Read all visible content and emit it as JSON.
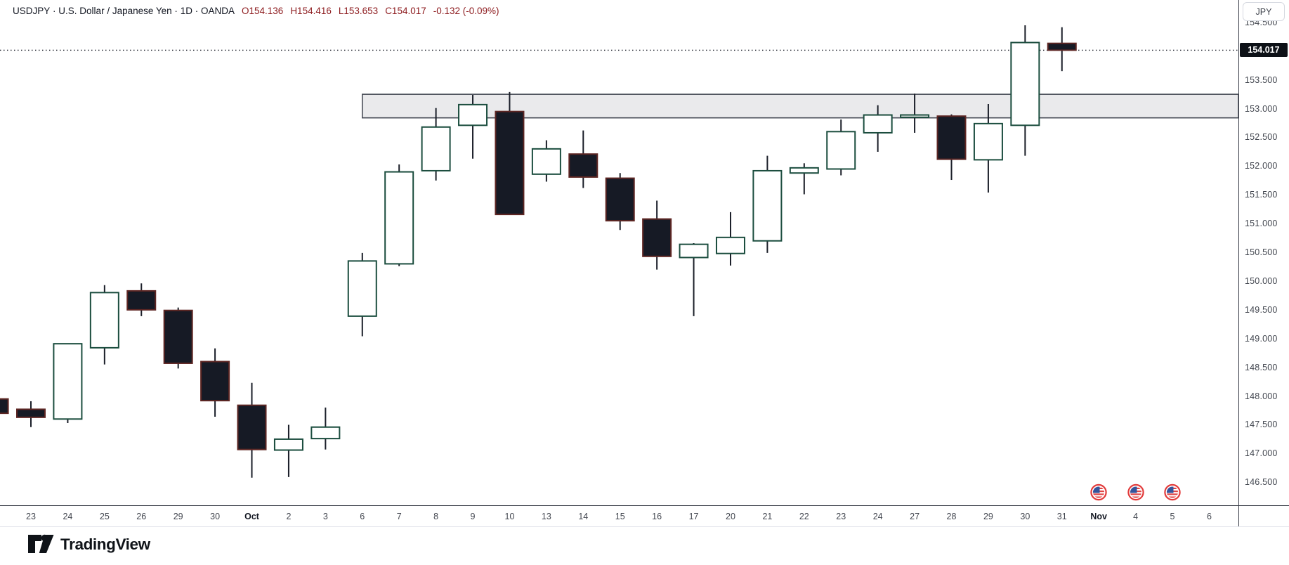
{
  "header": {
    "symbol": "USDJPY",
    "description": "U.S. Dollar / Japanese Yen",
    "interval": "1D",
    "exchange": "OANDA",
    "sep": "·",
    "open": "O154.136",
    "high": "H154.416",
    "low": "L153.653",
    "close": "C154.017",
    "change": "-0.132 (-0.09%)"
  },
  "price_axis": {
    "currency_label": "JPY",
    "last_price_tag": "154.017",
    "labels": [
      "154.500",
      "153.500",
      "153.000",
      "152.500",
      "152.000",
      "151.500",
      "151.000",
      "150.500",
      "150.000",
      "149.500",
      "149.000",
      "148.500",
      "148.000",
      "147.500",
      "147.000",
      "146.500"
    ]
  },
  "time_axis": {
    "labels": [
      "23",
      "24",
      "25",
      "26",
      "29",
      "30",
      "Oct",
      "2",
      "3",
      "6",
      "7",
      "8",
      "9",
      "10",
      "13",
      "14",
      "15",
      "16",
      "17",
      "20",
      "21",
      "22",
      "23",
      "24",
      "27",
      "28",
      "29",
      "30",
      "31",
      "Nov",
      "4",
      "5",
      "6"
    ],
    "month_indices": [
      6,
      29
    ],
    "event_icon_indices": [
      29,
      30,
      31
    ]
  },
  "chart_data": {
    "type": "candlestick",
    "title": "USDJPY 1D OANDA",
    "ylim": [
      146.1,
      154.89
    ],
    "grid": "off",
    "last_price_line": 154.017,
    "partial_candle_left_edge": {
      "open": 147.95,
      "high": 147.95,
      "low": 147.7,
      "close": 147.7,
      "dir": "down"
    },
    "candles": [
      {
        "date": "Sep 23",
        "open": 147.77,
        "high": 147.91,
        "low": 147.46,
        "close": 147.63
      },
      {
        "date": "Sep 24",
        "open": 147.6,
        "high": 148.91,
        "low": 147.53,
        "close": 148.91
      },
      {
        "date": "Sep 25",
        "open": 148.84,
        "high": 149.93,
        "low": 148.55,
        "close": 149.8
      },
      {
        "date": "Sep 26",
        "open": 149.83,
        "high": 149.96,
        "low": 149.39,
        "close": 149.5
      },
      {
        "date": "Sep 29",
        "open": 149.49,
        "high": 149.54,
        "low": 148.48,
        "close": 148.57
      },
      {
        "date": "Sep 30",
        "open": 148.6,
        "high": 148.83,
        "low": 147.64,
        "close": 147.92
      },
      {
        "date": "Oct 1",
        "open": 147.84,
        "high": 148.23,
        "low": 146.58,
        "close": 147.07
      },
      {
        "date": "Oct 2",
        "open": 147.06,
        "high": 147.5,
        "low": 146.59,
        "close": 147.25
      },
      {
        "date": "Oct 3",
        "open": 147.26,
        "high": 147.8,
        "low": 147.07,
        "close": 147.46
      },
      {
        "date": "Oct 6",
        "open": 149.39,
        "high": 150.49,
        "low": 149.04,
        "close": 150.35
      },
      {
        "date": "Oct 7",
        "open": 150.3,
        "high": 152.03,
        "low": 150.26,
        "close": 151.9
      },
      {
        "date": "Oct 8",
        "open": 151.92,
        "high": 153.01,
        "low": 151.75,
        "close": 152.68
      },
      {
        "date": "Oct 9",
        "open": 152.71,
        "high": 153.24,
        "low": 152.13,
        "close": 153.07
      },
      {
        "date": "Oct 10",
        "open": 152.95,
        "high": 153.29,
        "low": 151.16,
        "close": 151.16
      },
      {
        "date": "Oct 13",
        "open": 151.86,
        "high": 152.45,
        "low": 151.73,
        "close": 152.3
      },
      {
        "date": "Oct 14",
        "open": 152.21,
        "high": 152.62,
        "low": 151.62,
        "close": 151.81
      },
      {
        "date": "Oct 15",
        "open": 151.79,
        "high": 151.88,
        "low": 150.89,
        "close": 151.05
      },
      {
        "date": "Oct 16",
        "open": 151.08,
        "high": 151.4,
        "low": 150.2,
        "close": 150.43
      },
      {
        "date": "Oct 17",
        "open": 150.41,
        "high": 150.66,
        "low": 149.39,
        "close": 150.64
      },
      {
        "date": "Oct 20",
        "open": 150.48,
        "high": 151.2,
        "low": 150.27,
        "close": 150.76
      },
      {
        "date": "Oct 21",
        "open": 150.7,
        "high": 152.18,
        "low": 150.49,
        "close": 151.92
      },
      {
        "date": "Oct 22",
        "open": 151.88,
        "high": 152.05,
        "low": 151.51,
        "close": 151.97
      },
      {
        "date": "Oct 23",
        "open": 151.95,
        "high": 152.81,
        "low": 151.84,
        "close": 152.6
      },
      {
        "date": "Oct 24",
        "open": 152.58,
        "high": 153.06,
        "low": 152.25,
        "close": 152.89
      },
      {
        "date": "Oct 27",
        "open": 152.85,
        "high": 153.26,
        "low": 152.58,
        "close": 152.89
      },
      {
        "date": "Oct 28",
        "open": 152.87,
        "high": 152.9,
        "low": 151.76,
        "close": 152.12
      },
      {
        "date": "Oct 29",
        "open": 152.11,
        "high": 153.08,
        "low": 151.54,
        "close": 152.74
      },
      {
        "date": "Oct 30",
        "open": 152.71,
        "high": 154.45,
        "low": 152.18,
        "close": 154.15
      },
      {
        "date": "Oct 31",
        "open": 154.136,
        "high": 154.416,
        "low": 153.653,
        "close": 154.017
      }
    ],
    "zone": {
      "price_top": 153.25,
      "price_bottom": 152.84,
      "start_index": 9,
      "extends_to_right": true
    }
  },
  "colors": {
    "up_fill": "#ffffff",
    "up_border": "#1b4d3e",
    "down_fill": "#161a25",
    "down_border": "#5e2623",
    "wick": "#1a1e28",
    "zone_fill": "#eaeaec",
    "zone_border": "#4a4e58",
    "header_values_red": "#8e1d20",
    "tag_bg": "#0d1117",
    "event_ring_red": "#e23b3b",
    "flag_blue": "#33549c",
    "flag_red": "#e04444"
  },
  "logo": {
    "text": "TradingView"
  }
}
